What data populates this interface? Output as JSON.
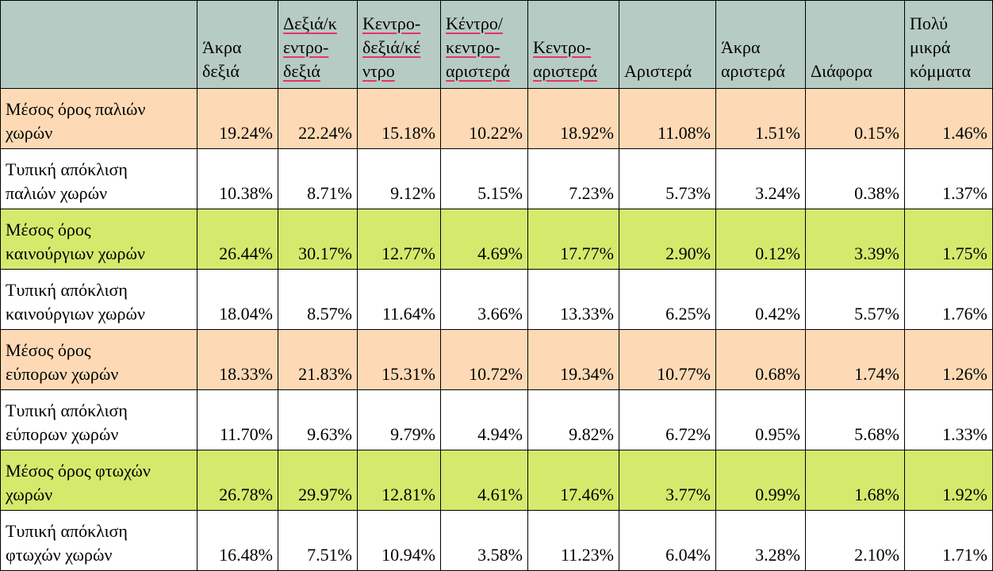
{
  "table": {
    "headers": [
      {
        "lines": [
          ""
        ],
        "spell": false
      },
      {
        "lines": [
          "Άκρα",
          "δεξιά"
        ],
        "spell": false
      },
      {
        "lines": [
          "Δεξιά/κ",
          "εντρο-",
          "δεξιά"
        ],
        "spell": true
      },
      {
        "lines": [
          "Κεντρο-",
          "δεξιά/κέ",
          "ντρο"
        ],
        "spell": true
      },
      {
        "lines": [
          "Κέντρο/",
          "κεντρο-",
          "αριστερά"
        ],
        "spell": true
      },
      {
        "lines": [
          "Κεντρο-",
          "αριστερά"
        ],
        "spell": true
      },
      {
        "lines": [
          "Αριστερά"
        ],
        "spell": false
      },
      {
        "lines": [
          "Άκρα",
          "αριστερά"
        ],
        "spell": false
      },
      {
        "lines": [
          "Διάφορα"
        ],
        "spell": false
      },
      {
        "lines": [
          "Πολύ",
          "μικρά",
          "κόμματα"
        ],
        "spell": false
      }
    ],
    "rows": [
      {
        "kind": "mean-old",
        "label": [
          "Μέσος όρος παλιών",
          "χωρών"
        ],
        "values": [
          "19.24%",
          "22.24%",
          "15.18%",
          "10.22%",
          "18.92%",
          "11.08%",
          "1.51%",
          "0.15%",
          "1.46%"
        ]
      },
      {
        "kind": "sd",
        "label": [
          "Τυπική απόκλιση",
          "παλιών χωρών"
        ],
        "values": [
          "10.38%",
          "8.71%",
          "9.12%",
          "5.15%",
          "7.23%",
          "5.73%",
          "3.24%",
          "0.38%",
          "1.37%"
        ]
      },
      {
        "kind": "mean-new",
        "label": [
          "Μέσος όρος",
          "καινούργιων χωρών"
        ],
        "values": [
          "26.44%",
          "30.17%",
          "12.77%",
          "4.69%",
          "17.77%",
          "2.90%",
          "0.12%",
          "3.39%",
          "1.75%"
        ]
      },
      {
        "kind": "sd",
        "label": [
          "Τυπική απόκλιση",
          "καινούργιων χωρών"
        ],
        "values": [
          "18.04%",
          "8.57%",
          "11.64%",
          "3.66%",
          "13.33%",
          "6.25%",
          "0.42%",
          "5.57%",
          "1.76%"
        ]
      },
      {
        "kind": "mean-rich",
        "label": [
          "Μέσος όρος",
          "εύπορων χωρών"
        ],
        "values": [
          "18.33%",
          "21.83%",
          "15.31%",
          "10.72%",
          "19.34%",
          "10.77%",
          "0.68%",
          "1.74%",
          "1.26%"
        ]
      },
      {
        "kind": "sd",
        "label": [
          "Τυπική απόκλιση",
          "εύπορων χωρών"
        ],
        "values": [
          "11.70%",
          "9.63%",
          "9.79%",
          "4.94%",
          "9.82%",
          "6.72%",
          "0.95%",
          "5.68%",
          "1.33%"
        ]
      },
      {
        "kind": "mean-poor",
        "label": [
          "Μέσος όρος φτωχών",
          "χωρών"
        ],
        "values": [
          "26.78%",
          "29.97%",
          "12.81%",
          "4.61%",
          "17.46%",
          "3.77%",
          "0.99%",
          "1.68%",
          "1.92%"
        ]
      },
      {
        "kind": "sd",
        "label": [
          "Τυπική απόκλιση",
          "φτωχών χωρών"
        ],
        "values": [
          "16.48%",
          "7.51%",
          "10.94%",
          "3.58%",
          "11.23%",
          "6.04%",
          "3.28%",
          "2.10%",
          "1.71%"
        ]
      }
    ]
  },
  "colors": {
    "header": "#B6CBC4",
    "peach": "#FDDAB5",
    "green": "#D5E96D",
    "spellcheck": "#E8336A"
  }
}
